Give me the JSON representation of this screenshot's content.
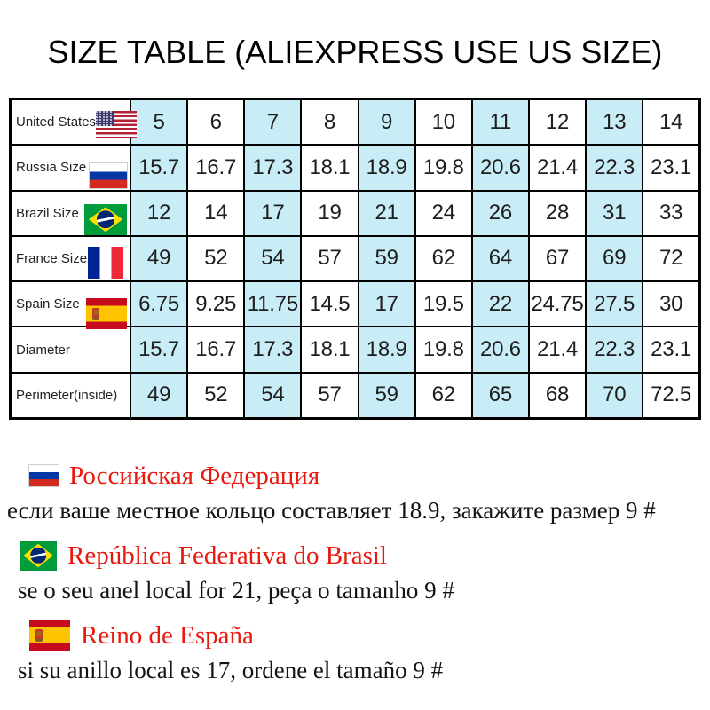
{
  "title": "SIZE TABLE (ALIEXPRESS USE US SIZE)",
  "colors": {
    "highlight_cell": "#c9edf6",
    "note_heading_red": "#e8190f",
    "table_border": "#000000",
    "background": "#ffffff"
  },
  "chart_data": {
    "type": "table",
    "title": "SIZE TABLE (ALIEXPRESS USE US SIZE)",
    "highlighted_column_indexes": [
      0,
      2,
      4,
      6,
      8
    ],
    "rows": [
      {
        "label": "United States",
        "flag": "us-flag-icon",
        "values": [
          "5",
          "6",
          "7",
          "8",
          "9",
          "10",
          "11",
          "12",
          "13",
          "14"
        ]
      },
      {
        "label": "Russia Size",
        "flag": "russia-flag-icon",
        "values": [
          "15.7",
          "16.7",
          "17.3",
          "18.1",
          "18.9",
          "19.8",
          "20.6",
          "21.4",
          "22.3",
          "23.1"
        ]
      },
      {
        "label": "Brazil Size",
        "flag": "brazil-flag-icon",
        "values": [
          "12",
          "14",
          "17",
          "19",
          "21",
          "24",
          "26",
          "28",
          "31",
          "33"
        ]
      },
      {
        "label": "France Size",
        "flag": "france-flag-icon",
        "values": [
          "49",
          "52",
          "54",
          "57",
          "59",
          "62",
          "64",
          "67",
          "69",
          "72"
        ]
      },
      {
        "label": "Spain Size",
        "flag": "spain-flag-icon",
        "values": [
          "6.75",
          "9.25",
          "11.75",
          "14.5",
          "17",
          "19.5",
          "22",
          "24.75",
          "27.5",
          "30"
        ]
      },
      {
        "label": "Diameter",
        "flag": null,
        "values": [
          "15.7",
          "16.7",
          "17.3",
          "18.1",
          "18.9",
          "19.8",
          "20.6",
          "21.4",
          "22.3",
          "23.1"
        ]
      },
      {
        "label": "Perimeter(inside)",
        "flag": null,
        "values": [
          "49",
          "52",
          "54",
          "57",
          "59",
          "62",
          "65",
          "68",
          "70",
          "72.5"
        ]
      }
    ]
  },
  "notes": [
    {
      "flag": "russia-flag-icon",
      "heading": "Российская Федерация",
      "body": "если ваше местное кольцо составляет 18.9, закажите размер 9 #"
    },
    {
      "flag": "brazil-flag-icon",
      "heading": "República Federativa do Brasil",
      "body": "se o seu anel local for 21, peça o tamanho 9 #"
    },
    {
      "flag": "spain-flag-icon",
      "heading": "Reino de España",
      "body": "si su anillo local es 17, ordene el tamaño 9 #"
    }
  ]
}
